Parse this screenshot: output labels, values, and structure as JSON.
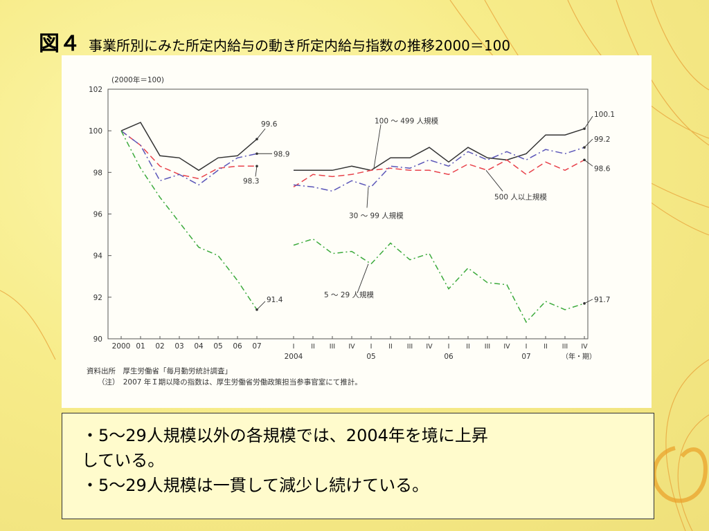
{
  "slide": {
    "fig_num": "図４",
    "title": "事業所別にみた所定内給与の動き所定内給与指数の推移2000＝100"
  },
  "chart_data": {
    "type": "line",
    "note_top": "(2000年＝100)",
    "ylim": [
      90,
      102
    ],
    "y_ticks": [
      "90",
      "92",
      "94",
      "96",
      "98",
      "100",
      "102"
    ],
    "annual": {
      "x": [
        "2000",
        "01",
        "02",
        "03",
        "04",
        "05",
        "06",
        "07"
      ],
      "series": [
        {
          "key": "s500",
          "values": [
            100,
            100.4,
            98.8,
            98.7,
            98.1,
            98.7,
            98.8,
            99.6
          ]
        },
        {
          "key": "s100",
          "values": [
            100,
            99.3,
            98.3,
            97.9,
            97.7,
            98.2,
            98.3,
            98.3
          ]
        },
        {
          "key": "s30",
          "values": [
            100,
            99.3,
            97.6,
            97.9,
            97.4,
            98.1,
            98.7,
            98.9
          ]
        },
        {
          "key": "s5",
          "values": [
            100,
            98.2,
            96.8,
            95.6,
            94.4,
            94.0,
            92.8,
            91.4
          ]
        }
      ]
    },
    "quarterly": {
      "x": [
        "I",
        "II",
        "III",
        "IV",
        "I",
        "II",
        "III",
        "IV",
        "I",
        "II",
        "III",
        "IV",
        "I",
        "II",
        "III",
        "IV"
      ],
      "year_labels": [
        "2004",
        "05",
        "06",
        "07"
      ],
      "unit_label": "（年・期）",
      "series": [
        {
          "key": "s500",
          "values": [
            98.1,
            98.1,
            98.1,
            98.3,
            98.1,
            98.7,
            98.7,
            99.2,
            98.5,
            99.2,
            98.7,
            98.6,
            98.9,
            99.8,
            99.8,
            100.1
          ]
        },
        {
          "key": "s100",
          "values": [
            97.3,
            97.9,
            97.8,
            97.9,
            98.1,
            98.2,
            98.1,
            98.1,
            97.9,
            98.4,
            98.1,
            98.6,
            97.9,
            98.5,
            98.1,
            98.6
          ]
        },
        {
          "key": "s30",
          "values": [
            97.4,
            97.3,
            97.1,
            97.6,
            97.3,
            98.3,
            98.2,
            98.6,
            98.3,
            99.0,
            98.6,
            99.0,
            98.6,
            99.1,
            98.9,
            99.2
          ]
        },
        {
          "key": "s5",
          "values": [
            94.5,
            94.8,
            94.1,
            94.2,
            93.6,
            94.6,
            93.8,
            94.1,
            92.4,
            93.4,
            92.7,
            92.6,
            90.8,
            91.8,
            91.4,
            91.7
          ]
        }
      ]
    },
    "colors": {
      "s500": "#333333",
      "s100": "#e8414a",
      "s30": "#5a55b8",
      "s5": "#3caa3c"
    },
    "series_labels": {
      "s500": "500 人以上規模",
      "s100": "100 〜 499 人規模",
      "s30": "30 〜 99 人規模",
      "s5": "5 〜 29 人規模"
    },
    "value_labels": {
      "a500": "99.6",
      "a30": "98.9",
      "a100": "98.3",
      "a5": "91.4",
      "q500": "100.1",
      "q30": "99.2",
      "q100": "98.6",
      "q5": "91.7"
    },
    "source": "資料出所　厚生労働省「毎月勤労統計調査」",
    "note": "（注）　2007 年Ｉ期以降の指数は、厚生労働省労働政策担当参事官室にて推計。"
  },
  "textbox": {
    "line1": "・5～29人規模以外の各規模では、2004年を境に上昇",
    "line2": "している。",
    "line3": "・5～29人規模は一貫して減少し続けている。"
  }
}
